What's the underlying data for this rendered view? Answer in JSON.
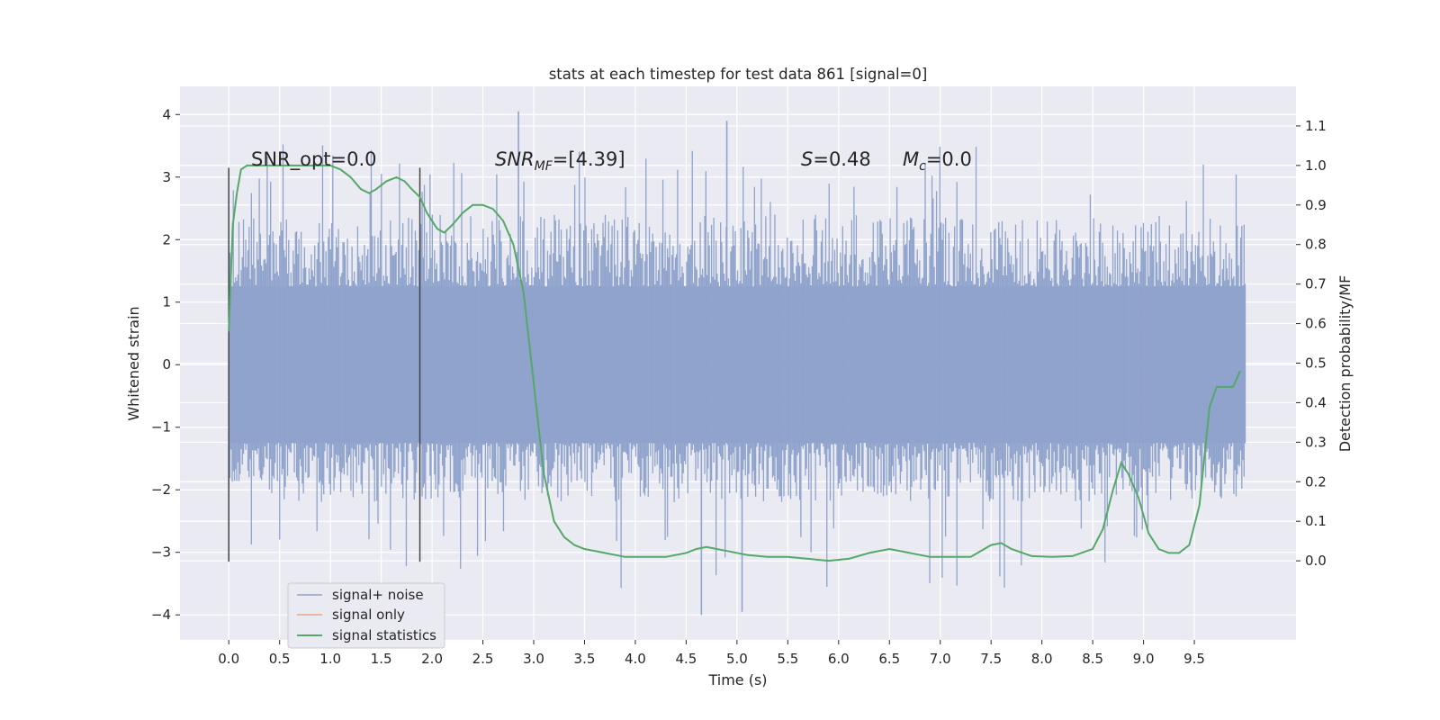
{
  "chart_data": {
    "type": "line",
    "title": "stats at each timestep for test data 861 [signal=0]",
    "xlabel": "Time (s)",
    "ylabel_left": "Whitened strain",
    "ylabel_right": "Detection probability/MF",
    "xlim": [
      -0.48,
      10.5
    ],
    "ylim_left": [
      -4.4,
      4.45
    ],
    "ylim_right": [
      -0.2,
      1.2
    ],
    "x_ticks": [
      "0.0",
      "0.5",
      "1.0",
      "1.5",
      "2.0",
      "2.5",
      "3.0",
      "3.5",
      "4.0",
      "4.5",
      "5.0",
      "5.5",
      "6.0",
      "6.5",
      "7.0",
      "7.5",
      "8.0",
      "8.5",
      "9.0",
      "9.5"
    ],
    "y_left_ticks": [
      4,
      3,
      2,
      1,
      0,
      -1,
      -2,
      -3,
      -4
    ],
    "y_left_tick_labels": [
      "4",
      "3",
      "2",
      "1",
      "0",
      "−1",
      "−2",
      "−3",
      "−4"
    ],
    "y_right_ticks": [
      "1.1",
      "1.0",
      "0.9",
      "0.8",
      "0.7",
      "0.6",
      "0.5",
      "0.4",
      "0.3",
      "0.2",
      "0.1",
      "0.0"
    ],
    "grid": true,
    "legend_position": "lower-left",
    "annotations": {
      "snr_opt": "SNR_opt=0.0",
      "snr_mf_sym": "SNR",
      "snr_mf_sub": "MF",
      "snr_mf_val": "=[4.39]",
      "s_sym": "S",
      "s_val": "=0.48",
      "mc_sym": "M",
      "mc_sub": "c",
      "mc_val": "=0.0"
    },
    "vertical_lines": [
      0.0,
      1.88
    ],
    "vertical_line_range": [
      -3.15,
      3.15
    ],
    "series": [
      {
        "name": "signal+ noise",
        "color": "#8fa3cc",
        "kind": "dense-noise",
        "x_range": [
          0.0,
          10.0
        ],
        "core_band": [
          -1.25,
          1.25
        ],
        "typical_extent": [
          -2.2,
          2.4
        ],
        "max": 4.05,
        "min": -4.0
      },
      {
        "name": "signal only",
        "color": "#e8a882",
        "x": [],
        "y": []
      },
      {
        "name": "signal statistics",
        "color": "#55a868",
        "axis": "right",
        "x": [
          0.0,
          0.04,
          0.08,
          0.12,
          0.18,
          0.3,
          0.5,
          0.7,
          0.9,
          1.0,
          1.1,
          1.2,
          1.3,
          1.38,
          1.45,
          1.55,
          1.65,
          1.73,
          1.8,
          1.88,
          1.95,
          2.05,
          2.12,
          2.2,
          2.3,
          2.4,
          2.5,
          2.6,
          2.7,
          2.8,
          2.9,
          3.0,
          3.1,
          3.2,
          3.3,
          3.4,
          3.5,
          3.7,
          3.9,
          4.1,
          4.3,
          4.5,
          4.6,
          4.7,
          4.9,
          5.1,
          5.3,
          5.5,
          5.7,
          5.9,
          6.1,
          6.3,
          6.5,
          6.7,
          6.9,
          7.1,
          7.3,
          7.5,
          7.6,
          7.7,
          7.9,
          8.1,
          8.3,
          8.5,
          8.6,
          8.7,
          8.78,
          8.85,
          8.95,
          9.05,
          9.15,
          9.25,
          9.35,
          9.45,
          9.55,
          9.65,
          9.72,
          9.8,
          9.88,
          9.95
        ],
        "y": [
          0.58,
          0.85,
          0.93,
          0.99,
          1.0,
          1.0,
          1.0,
          1.0,
          1.0,
          1.0,
          0.99,
          0.97,
          0.94,
          0.93,
          0.94,
          0.96,
          0.97,
          0.96,
          0.94,
          0.92,
          0.88,
          0.84,
          0.83,
          0.85,
          0.88,
          0.9,
          0.9,
          0.89,
          0.86,
          0.8,
          0.68,
          0.45,
          0.22,
          0.1,
          0.06,
          0.04,
          0.03,
          0.02,
          0.01,
          0.01,
          0.01,
          0.02,
          0.03,
          0.035,
          0.025,
          0.015,
          0.01,
          0.01,
          0.005,
          0.0,
          0.005,
          0.02,
          0.03,
          0.02,
          0.01,
          0.01,
          0.01,
          0.04,
          0.045,
          0.03,
          0.012,
          0.01,
          0.012,
          0.03,
          0.08,
          0.18,
          0.248,
          0.22,
          0.16,
          0.07,
          0.03,
          0.02,
          0.02,
          0.04,
          0.14,
          0.39,
          0.44,
          0.44,
          0.44,
          0.48
        ]
      }
    ]
  }
}
